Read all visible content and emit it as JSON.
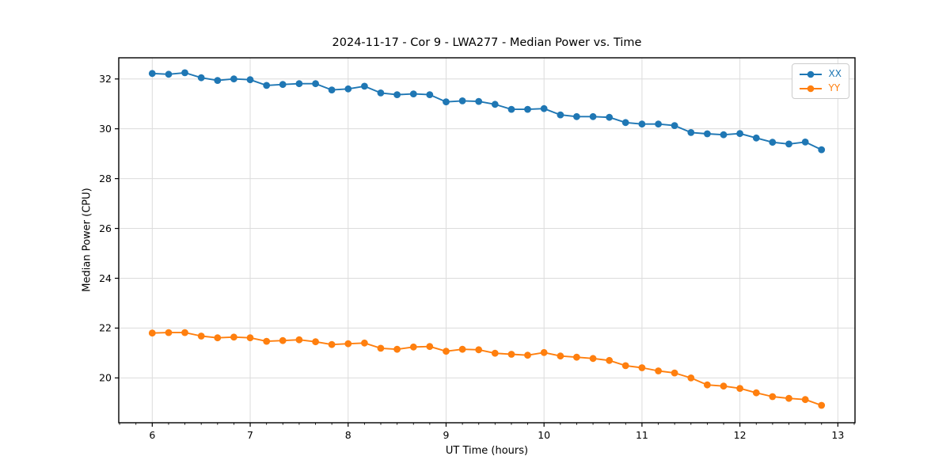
{
  "chart_data": {
    "type": "line",
    "title": "2024-11-17 - Cor 9 - LWA277 - Median Power vs. Time",
    "xlabel": "UT Time (hours)",
    "ylabel": "Median Power (CPU)",
    "xlim": [
      5.658,
      13.175
    ],
    "ylim": [
      18.2,
      32.85
    ],
    "x_major_ticks": [
      6,
      7,
      8,
      9,
      10,
      11,
      12,
      13
    ],
    "x_minor_tick_step": 0.16667,
    "y_major_ticks": [
      20,
      22,
      24,
      26,
      28,
      30,
      32
    ],
    "grid": true,
    "grid_color": "#dcdcdc",
    "legend_position": "upper right",
    "x": [
      6.0,
      6.167,
      6.333,
      6.5,
      6.667,
      6.833,
      7.0,
      7.167,
      7.333,
      7.5,
      7.667,
      7.833,
      8.0,
      8.167,
      8.333,
      8.5,
      8.667,
      8.833,
      9.0,
      9.167,
      9.333,
      9.5,
      9.667,
      9.833,
      10.0,
      10.167,
      10.333,
      10.5,
      10.667,
      10.833,
      11.0,
      11.167,
      11.333,
      11.5,
      11.667,
      11.833,
      12.0,
      12.167,
      12.333,
      12.5,
      12.667,
      12.833
    ],
    "series": [
      {
        "name": "XX",
        "color": "#1f77b4",
        "values": [
          32.22,
          32.19,
          32.25,
          32.05,
          31.94,
          32.0,
          31.97,
          31.74,
          31.78,
          31.81,
          31.81,
          31.56,
          31.6,
          31.71,
          31.44,
          31.37,
          31.4,
          31.37,
          31.08,
          31.12,
          31.1,
          30.98,
          30.78,
          30.78,
          30.81,
          30.56,
          30.49,
          30.49,
          30.46,
          30.25,
          30.19,
          30.19,
          30.13,
          29.85,
          29.8,
          29.76,
          29.81,
          29.63,
          29.46,
          29.39,
          29.47,
          29.16
        ]
      },
      {
        "name": "YY",
        "color": "#ff7f0e",
        "values": [
          21.8,
          21.82,
          21.82,
          21.68,
          21.61,
          21.64,
          21.61,
          21.47,
          21.5,
          21.53,
          21.45,
          21.34,
          21.37,
          21.4,
          21.19,
          21.15,
          21.24,
          21.26,
          21.07,
          21.15,
          21.13,
          20.99,
          20.95,
          20.91,
          21.02,
          20.88,
          20.83,
          20.78,
          20.7,
          20.49,
          20.41,
          20.28,
          20.2,
          20.0,
          19.72,
          19.67,
          19.58,
          19.4,
          19.25,
          19.18,
          19.13,
          18.9
        ]
      }
    ]
  }
}
